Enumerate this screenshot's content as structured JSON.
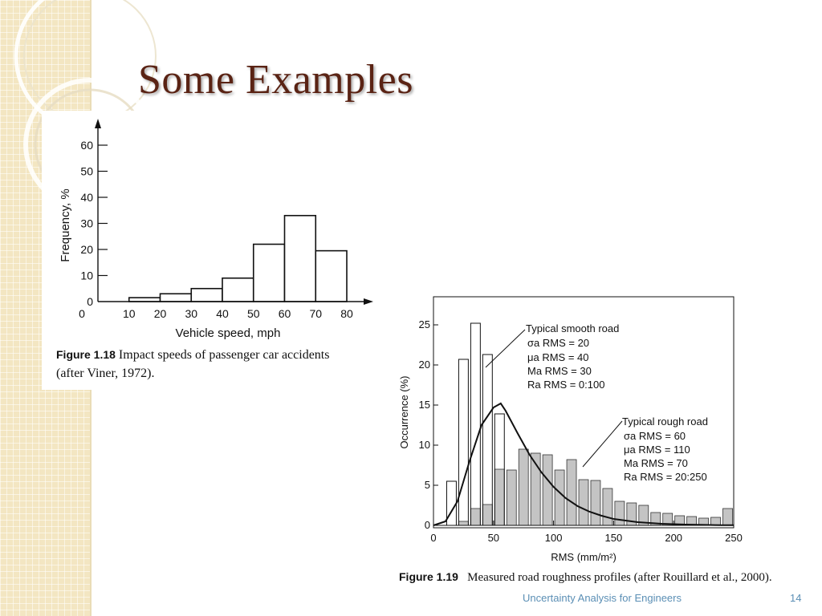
{
  "slide": {
    "title": "Some Examples",
    "footer": "Uncertainty Analysis for Engineers",
    "page_number": "14"
  },
  "figure_1_18": {
    "caption_number": "Figure 1.18",
    "caption_text_line1": "Impact speeds of passenger car accidents",
    "caption_text_line2": "(after Viner, 1972)."
  },
  "figure_1_19": {
    "caption_number": "Figure 1.19",
    "caption_text": "Measured road roughness profiles (after Rouillard et al., 2000).",
    "annotation_smooth": {
      "title": "Typical smooth road",
      "lines": [
        "σa RMS = 20",
        "μa RMS = 40",
        "Ma RMS = 30",
        "Ra RMS = 0:100"
      ]
    },
    "annotation_rough": {
      "title": "Typical rough road",
      "lines": [
        "σa RMS = 60",
        "μa RMS = 110",
        "Ma RMS = 70",
        "Ra RMS = 20:250"
      ]
    }
  },
  "chart_data": [
    {
      "type": "bar",
      "xlabel": "Vehicle speed, mph",
      "ylabel": "Frequency, %",
      "x_ticks": [
        "0",
        "10",
        "20",
        "30",
        "40",
        "50",
        "60",
        "70",
        "80"
      ],
      "y_ticks": [
        "0",
        "10",
        "20",
        "30",
        "40",
        "50",
        "60"
      ],
      "xlim": [
        0,
        80
      ],
      "ylim": [
        0,
        60
      ],
      "bins": [
        [
          10,
          20
        ],
        [
          20,
          30
        ],
        [
          30,
          40
        ],
        [
          40,
          50
        ],
        [
          50,
          60
        ],
        [
          60,
          70
        ],
        [
          70,
          80
        ]
      ],
      "values": [
        1.5,
        3,
        5,
        9,
        22,
        33,
        19.5
      ]
    },
    {
      "type": "bar",
      "xlabel": "RMS (mm/m²)",
      "ylabel": "Occurrence (%)",
      "x_ticks": [
        "0",
        "50",
        "100",
        "150",
        "200",
        "250"
      ],
      "y_ticks": [
        "0",
        "5",
        "10",
        "15",
        "20",
        "25"
      ],
      "xlim": [
        0,
        250
      ],
      "ylim": [
        0,
        27
      ],
      "bin_width": 10,
      "series": [
        {
          "name": "Typical smooth road",
          "bins": [
            15,
            25,
            35,
            45,
            55
          ],
          "values": [
            5.5,
            20.7,
            25.2,
            21.3,
            13.9
          ]
        },
        {
          "name": "Typical rough road",
          "bins": [
            25,
            35,
            45,
            55,
            65,
            75,
            85,
            95,
            105,
            115,
            125,
            135,
            145,
            155,
            165,
            175,
            185,
            195,
            205,
            215,
            225,
            235,
            245
          ],
          "values": [
            0.5,
            2.1,
            2.6,
            7.0,
            6.9,
            9.5,
            9.0,
            8.8,
            6.9,
            8.2,
            5.7,
            5.6,
            4.6,
            3.0,
            2.8,
            2.5,
            1.6,
            1.5,
            1.2,
            1.1,
            0.9,
            1.0,
            2.1
          ]
        }
      ],
      "fitted_curve": {
        "x": [
          0,
          10,
          20,
          30,
          40,
          50,
          56,
          60,
          70,
          80,
          90,
          100,
          110,
          120,
          130,
          140,
          150,
          160,
          170,
          180,
          190,
          200,
          210,
          220,
          230,
          240,
          250
        ],
        "y": [
          0,
          0.5,
          3.0,
          8.0,
          12.5,
          14.7,
          15.2,
          14.3,
          11.5,
          8.8,
          6.6,
          4.8,
          3.4,
          2.4,
          1.7,
          1.2,
          0.8,
          0.6,
          0.4,
          0.3,
          0.2,
          0.15,
          0.1,
          0.08,
          0.05,
          0.03,
          0.02
        ]
      }
    }
  ]
}
